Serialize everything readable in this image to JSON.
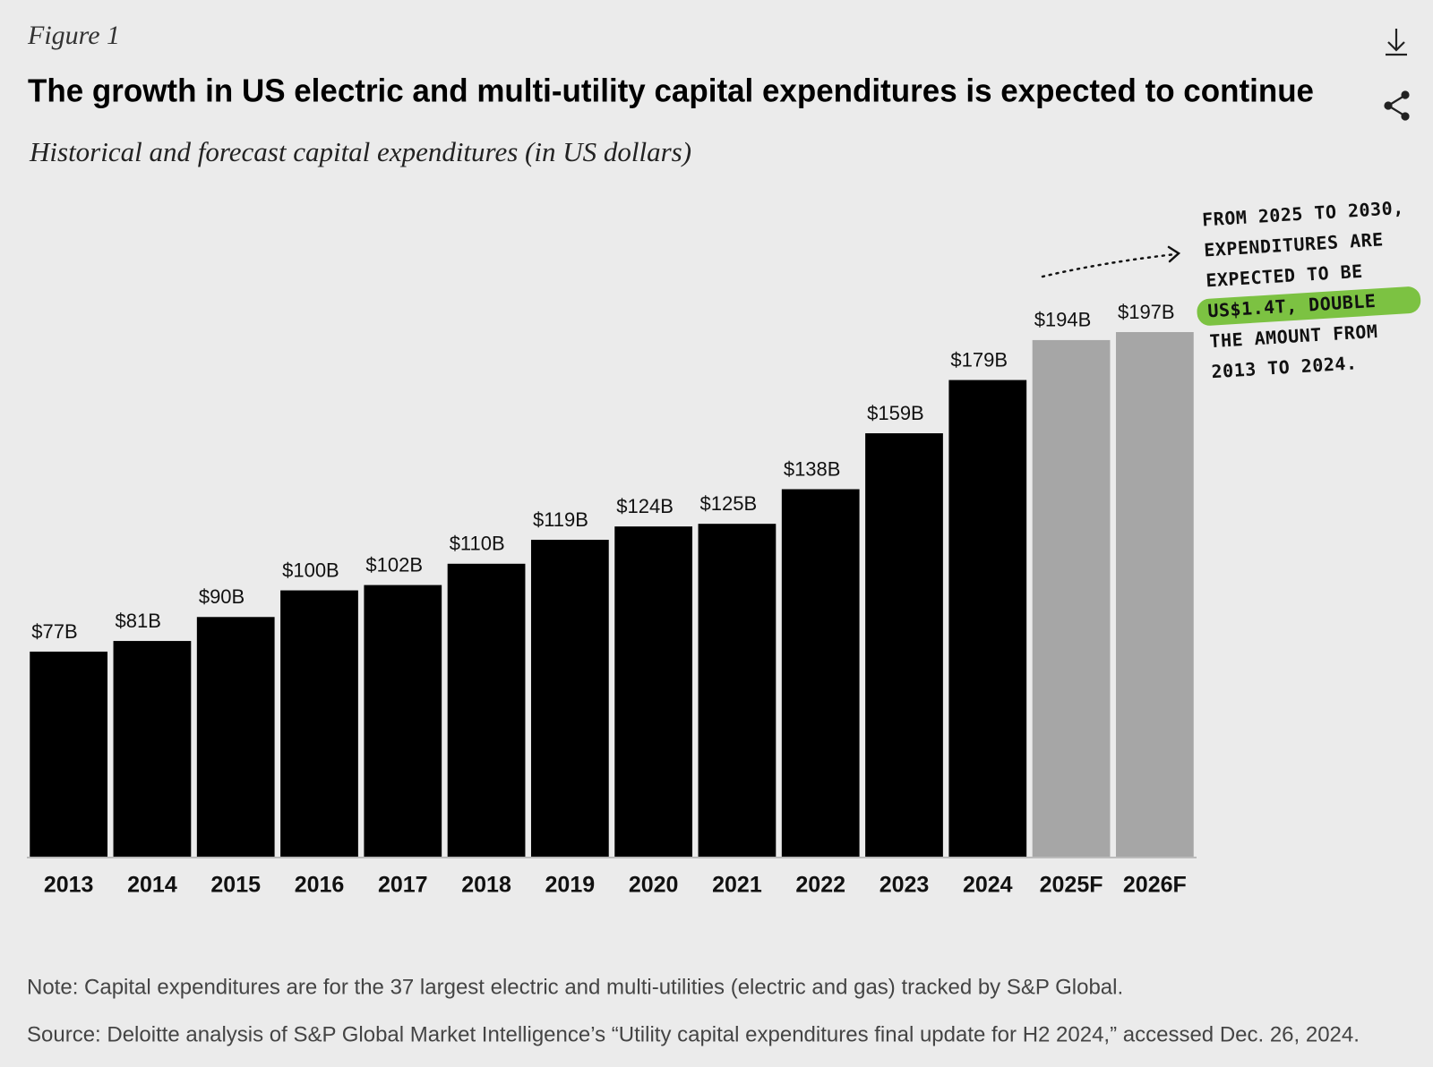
{
  "chart_data": {
    "type": "bar",
    "figure_label": "Figure 1",
    "title": "The growth in US electric and multi-utility capital expenditures is expected to continue",
    "subtitle": "Historical and forecast capital expenditures (in US dollars)",
    "categories": [
      "2013",
      "2014",
      "2015",
      "2016",
      "2017",
      "2018",
      "2019",
      "2020",
      "2021",
      "2022",
      "2023",
      "2024",
      "2025F",
      "2026F"
    ],
    "values": [
      77,
      81,
      90,
      100,
      102,
      110,
      119,
      124,
      125,
      138,
      159,
      179,
      194,
      197
    ],
    "value_labels": [
      "$77B",
      "$81B",
      "$90B",
      "$100B",
      "$102B",
      "$110B",
      "$119B",
      "$124B",
      "$125B",
      "$138B",
      "$159B",
      "$179B",
      "$194B",
      "$197B"
    ],
    "colors": [
      "#000000",
      "#000000",
      "#000000",
      "#000000",
      "#000000",
      "#000000",
      "#000000",
      "#000000",
      "#000000",
      "#000000",
      "#000000",
      "#000000",
      "#a6a6a6",
      "#a6a6a6"
    ],
    "annotation": {
      "lines_before": [
        "FROM 2025 TO 2030,",
        "EXPENDITURES ARE",
        "EXPECTED TO BE"
      ],
      "highlight": "US$1.4T, DOUBLE",
      "highlight_color": "#7cc242",
      "lines_after": [
        "THE AMOUNT FROM",
        "2013 TO 2024."
      ]
    },
    "note": "Note: Capital expenditures are for the 37 largest electric and multi-utilities (electric and gas) tracked by S&P Global.",
    "source": "Source: Deloitte analysis of S&P Global Market Intelligence’s “Utility capital expenditures final update for H2 2024,” accessed Dec. 26, 2024."
  }
}
